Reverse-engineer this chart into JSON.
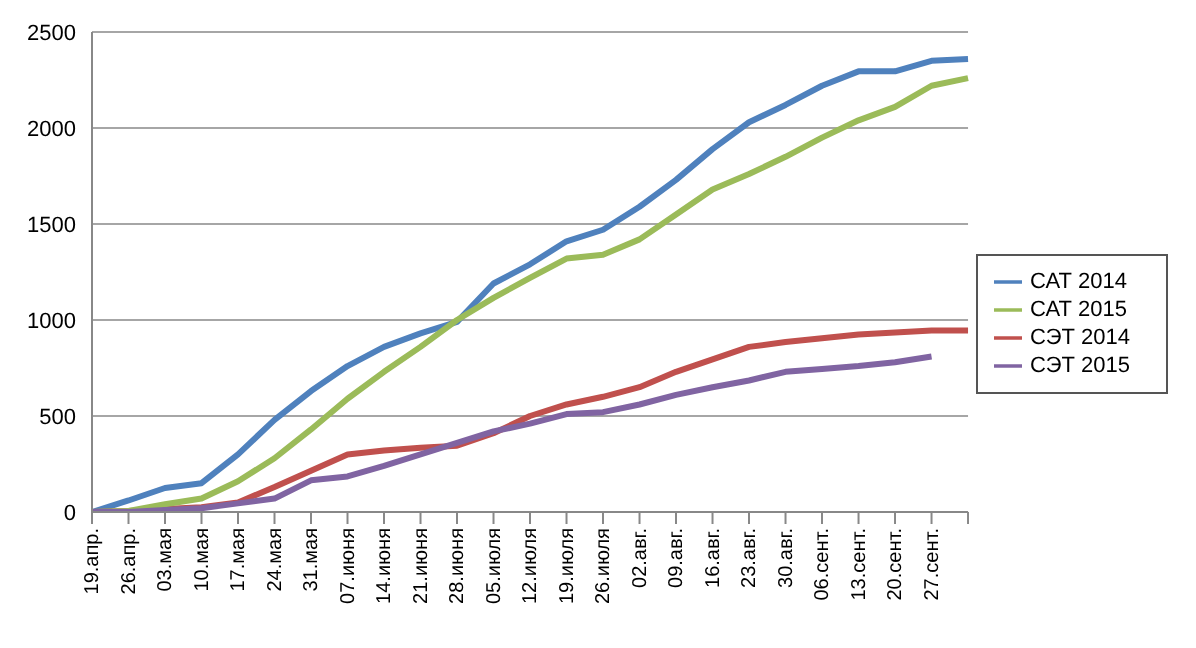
{
  "chart_data": {
    "type": "line",
    "categories": [
      "19.апр.",
      "26.апр.",
      "03.мая",
      "10.мая",
      "17.мая",
      "24.мая",
      "31.мая",
      "07.июня",
      "14.июня",
      "21.июня",
      "28.июня",
      "05.июля",
      "12.июля",
      "19.июля",
      "26.июля",
      "02.авг.",
      "09.авг.",
      "16.авг.",
      "23.авг.",
      "30.авг.",
      "06.сент.",
      "13.сент.",
      "20.сент.",
      "27.сент.",
      null
    ],
    "series": [
      {
        "name": "САТ 2014",
        "color": "#4f81bd",
        "values": [
          0,
          60,
          125,
          150,
          300,
          480,
          630,
          760,
          860,
          930,
          990,
          1190,
          1290,
          1410,
          1470,
          1590,
          1730,
          1890,
          2030,
          2120,
          2220,
          2295,
          2295,
          2350,
          2360
        ]
      },
      {
        "name": "СЭТ 2014",
        "color": "#c0504d",
        "values": [
          0,
          5,
          15,
          25,
          50,
          130,
          215,
          300,
          320,
          335,
          345,
          410,
          500,
          560,
          600,
          650,
          730,
          795,
          860,
          885,
          905,
          925,
          935,
          945,
          945
        ]
      },
      {
        "name": "САТ 2015",
        "color": "#9bbb59",
        "values": [
          0,
          5,
          40,
          70,
          160,
          280,
          430,
          590,
          730,
          860,
          1000,
          1115,
          1220,
          1320,
          1340,
          1420,
          1550,
          1680,
          1760,
          1850,
          1950,
          2040,
          2110,
          2220,
          2260
        ]
      },
      {
        "name": "СЭТ 2015",
        "color": "#8064a2",
        "values": [
          0,
          0,
          10,
          20,
          45,
          70,
          165,
          185,
          240,
          300,
          360,
          420,
          460,
          510,
          520,
          560,
          610,
          650,
          685,
          730,
          745,
          760,
          780,
          810,
          null
        ]
      }
    ],
    "ylim": [
      0,
      2500
    ],
    "yticks": [
      0,
      500,
      1000,
      1500,
      2000,
      2500
    ],
    "grid": "y",
    "legend": "right"
  }
}
